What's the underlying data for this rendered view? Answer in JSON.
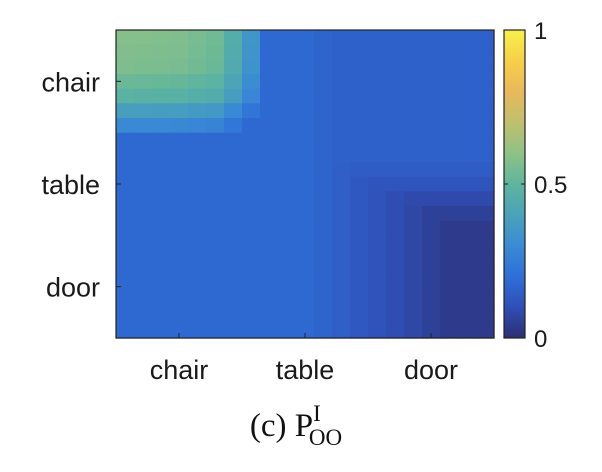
{
  "chart_data": {
    "type": "heatmap",
    "title": "",
    "row_labels": [
      "chair",
      "table",
      "door"
    ],
    "col_labels": [
      "chair",
      "table",
      "door"
    ],
    "cell_grid": {
      "rows": 21,
      "cols": 21
    },
    "row_breaks": [
      {
        "index": 0,
        "weight": 0.58
      },
      {
        "index": 2,
        "weight": 0.55
      },
      {
        "index": 4,
        "weight": 0.4
      },
      {
        "index": 5,
        "weight": 0.25
      },
      {
        "index": 6,
        "weight": 0.15
      },
      {
        "index": 7,
        "weight": 0.05
      },
      {
        "index": 14,
        "weight": 0.0
      },
      {
        "index": 20,
        "weight": 0.0
      }
    ],
    "col_breaks": [
      {
        "index": 0,
        "weight": 0.58
      },
      {
        "index": 3,
        "weight": 0.56
      },
      {
        "index": 5,
        "weight": 0.5
      },
      {
        "index": 6,
        "weight": 0.35
      },
      {
        "index": 7,
        "weight": 0.2
      },
      {
        "index": 8,
        "weight": 0.05
      },
      {
        "index": 20,
        "weight": 0.0
      }
    ],
    "bottom_left_level": 0.18,
    "floor_level": 0.04,
    "top_right_level": 0.16,
    "colorbar": {
      "ticks": [
        0,
        0.5,
        1
      ],
      "tick_labels": [
        "0",
        "0.5",
        "1"
      ],
      "range": [
        0,
        1
      ],
      "colormap": "parula"
    },
    "colormap_stops": [
      {
        "v": 0.0,
        "color": "#2d2e72"
      },
      {
        "v": 0.1,
        "color": "#2f4fb6"
      },
      {
        "v": 0.2,
        "color": "#2e6fd8"
      },
      {
        "v": 0.3,
        "color": "#3a8bd4"
      },
      {
        "v": 0.4,
        "color": "#4aa3b8"
      },
      {
        "v": 0.5,
        "color": "#5eb59e"
      },
      {
        "v": 0.6,
        "color": "#8fc286"
      },
      {
        "v": 0.7,
        "color": "#c0bf6e"
      },
      {
        "v": 0.8,
        "color": "#e8b95a"
      },
      {
        "v": 0.9,
        "color": "#f6d049"
      },
      {
        "v": 1.0,
        "color": "#f8f04a"
      }
    ]
  },
  "caption": {
    "prefix": "(c) P",
    "superscript": "I",
    "subscript": "OO"
  }
}
